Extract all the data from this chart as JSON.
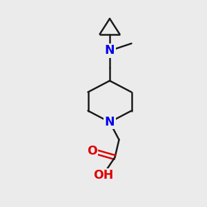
{
  "bg_color": "#ebebeb",
  "bond_color": "#1a1a1a",
  "N_color": "#0000ee",
  "O_color": "#dd0000",
  "line_width": 1.8,
  "font_size": 12.5,
  "figsize": [
    3.0,
    3.0
  ],
  "dpi": 100,
  "xlim": [
    0,
    10
  ],
  "ylim": [
    0,
    10
  ]
}
